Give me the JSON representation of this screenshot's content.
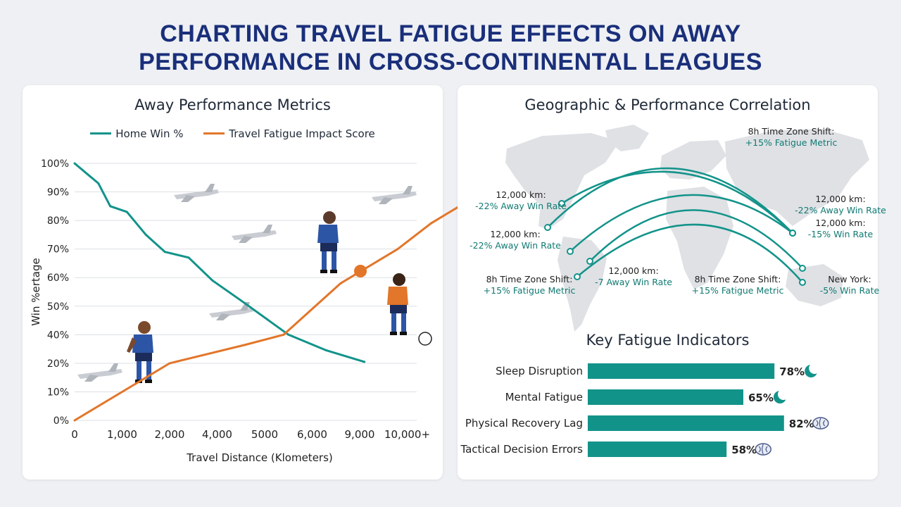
{
  "page_title": {
    "line1": "CHARTING TRAVEL FATIGUE EFFECTS ON AWAY",
    "line2": "PERFORMANCE IN CROSS-CONTINENTAL LEAGUES"
  },
  "colors": {
    "teal": "#12938a",
    "orange": "#e2762a",
    "title": "#1a2f7a",
    "grid": "#dcdfe4"
  },
  "chart_data": [
    {
      "type": "line",
      "title": "Away Performance Metrics",
      "xlabel": "Travel Distance (Klometers)",
      "ylabel": "Win %ertage",
      "x": [
        "0",
        "1,000",
        "2,000",
        "4,000",
        "5000",
        "6,000",
        "9,000",
        "10,000+"
      ],
      "y_ticks": [
        "0%",
        "10%",
        "20%",
        "40%",
        "50%",
        "60%",
        "70%",
        "80%",
        "90%",
        "100%"
      ],
      "ylim": [
        0,
        100
      ],
      "grid": true,
      "legend_position": "top",
      "series": [
        {
          "name": "Home Win %",
          "color": "#12938a",
          "points": [
            [
              0,
              100
            ],
            [
              0.5,
              93
            ],
            [
              0.75,
              85
            ],
            [
              1.1,
              83
            ],
            [
              1.5,
              75
            ],
            [
              1.9,
              69
            ],
            [
              2.4,
              67
            ],
            [
              2.9,
              59
            ],
            [
              3.5,
              52
            ],
            [
              4.5,
              40
            ],
            [
              5.3,
              29
            ],
            [
              6.1,
              21
            ]
          ]
        },
        {
          "name": "Travel Fatigue Impact Score",
          "color": "#e2762a",
          "points": [
            [
              0,
              0
            ],
            [
              0.9,
              9
            ],
            [
              1.5,
              15
            ],
            [
              2.0,
              20
            ],
            [
              3.6,
              33
            ],
            [
              4.4,
              40
            ],
            [
              5.6,
              58
            ],
            [
              6.0,
              62
            ],
            [
              6.8,
              70
            ],
            [
              7.5,
              79
            ],
            [
              8.1,
              85
            ]
          ]
        }
      ],
      "x_tick_positions": [
        0,
        1,
        2,
        3,
        4,
        5,
        6,
        7
      ],
      "x_range": [
        0,
        7.2
      ]
    },
    {
      "type": "bar",
      "title": "Key Fatigue Indicators",
      "categories": [
        "Sleep Disruption",
        "Mental Fatigue",
        "Physical Recovery Lag",
        "Tactical Decision Errors"
      ],
      "values": [
        78,
        65,
        82,
        58
      ],
      "value_labels": [
        "78%",
        "65%",
        "82%",
        "58%"
      ],
      "icons": [
        "moon-icon",
        "moon-icon",
        "brain-icon",
        "brain-icon"
      ],
      "color": "#12938a"
    }
  ],
  "map": {
    "title": "Geographic & Performance Correlation",
    "annotations": [
      {
        "line1": "8h Time Zone Shift:",
        "line2": "+15% Fatigue Metric"
      },
      {
        "line1": "12,000 km:",
        "line2": "-22% Away Win Rate"
      },
      {
        "line1": "12,000 km:",
        "line2": "-22% Away Win Rate"
      },
      {
        "line1": "8h Time Zone Shift:",
        "line2": "+15% Fatigue Metric"
      },
      {
        "line1": "12,000 km:",
        "line2": "-7 Away Win Rate"
      },
      {
        "line1": "8h Time Zone Shift:",
        "line2": "+15% Fatigue Metric"
      },
      {
        "line1": "12,000 km:",
        "line2": "-22% Away Win Rate"
      },
      {
        "line1": "12,000 km:",
        "line2": "-15% Win Rate"
      },
      {
        "line1": "New York:",
        "line2": "-5% Win Rate"
      }
    ]
  }
}
